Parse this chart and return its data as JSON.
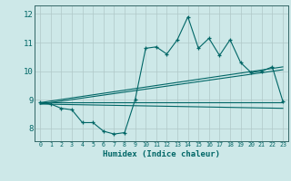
{
  "xlabel": "Humidex (Indice chaleur)",
  "ylabel": "",
  "bg_color": "#cde8e8",
  "grid_color": "#b0c8c8",
  "line_color": "#006666",
  "spine_color": "#336666",
  "xlim": [
    -0.5,
    23.5
  ],
  "ylim": [
    7.55,
    12.3
  ],
  "xticks": [
    0,
    1,
    2,
    3,
    4,
    5,
    6,
    7,
    8,
    9,
    10,
    11,
    12,
    13,
    14,
    15,
    16,
    17,
    18,
    19,
    20,
    21,
    22,
    23
  ],
  "yticks": [
    8,
    9,
    10,
    11,
    12
  ],
  "x": [
    0,
    1,
    2,
    3,
    4,
    5,
    6,
    7,
    8,
    9,
    10,
    11,
    12,
    13,
    14,
    15,
    16,
    17,
    18,
    19,
    20,
    21,
    22,
    23
  ],
  "line1": [
    8.9,
    8.85,
    8.7,
    8.65,
    8.2,
    8.2,
    7.9,
    7.8,
    7.85,
    9.0,
    10.8,
    10.85,
    10.6,
    11.1,
    11.9,
    10.8,
    11.15,
    10.55,
    11.1,
    10.3,
    9.95,
    10.0,
    10.15,
    8.95
  ],
  "line2_x": [
    0,
    23
  ],
  "line2_y": [
    8.9,
    8.9
  ],
  "line3_x": [
    0,
    23
  ],
  "line3_y": [
    8.85,
    8.7
  ],
  "line4_x": [
    0,
    23
  ],
  "line4_y": [
    8.9,
    10.15
  ],
  "line5_x": [
    0,
    23
  ],
  "line5_y": [
    8.85,
    10.05
  ]
}
